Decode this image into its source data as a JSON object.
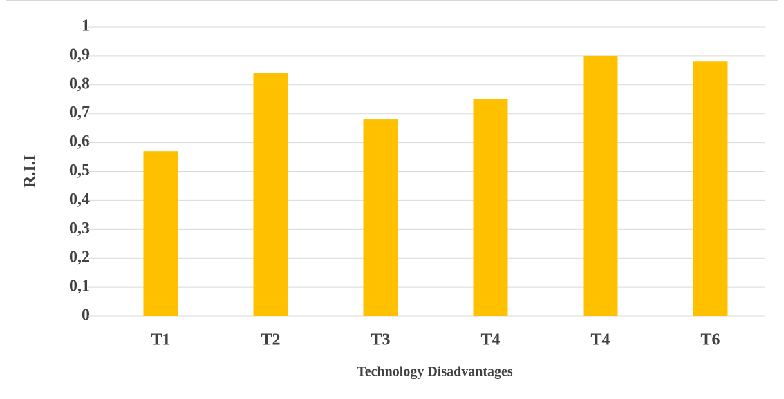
{
  "chart_data": {
    "type": "bar",
    "x_label": "Technology Disadvantages",
    "y_label": "R.I.I",
    "categories": [
      "T1",
      "T2",
      "T3",
      "T4",
      "T4",
      "T6"
    ],
    "values": [
      0.57,
      0.84,
      0.68,
      0.75,
      0.9,
      0.88
    ],
    "color": "#ffc000",
    "ylim": [
      0,
      1
    ],
    "yticks": [
      0,
      {
        "value": 0.1,
        "label": "0,1"
      },
      {
        "value": 0.2,
        "label": "0,2"
      },
      {
        "value": 0.3,
        "label": "0,3"
      },
      {
        "value": 0.4,
        "label": "0,4"
      },
      {
        "value": 0.5,
        "label": "0,5"
      },
      {
        "value": 0.6,
        "label": "0,6"
      },
      {
        "value": 0.7,
        "label": "0,7"
      },
      {
        "value": 0.8,
        "label": "0,8"
      },
      {
        "value": 0.9,
        "label": "0,9"
      },
      1
    ],
    "grid": true
  }
}
